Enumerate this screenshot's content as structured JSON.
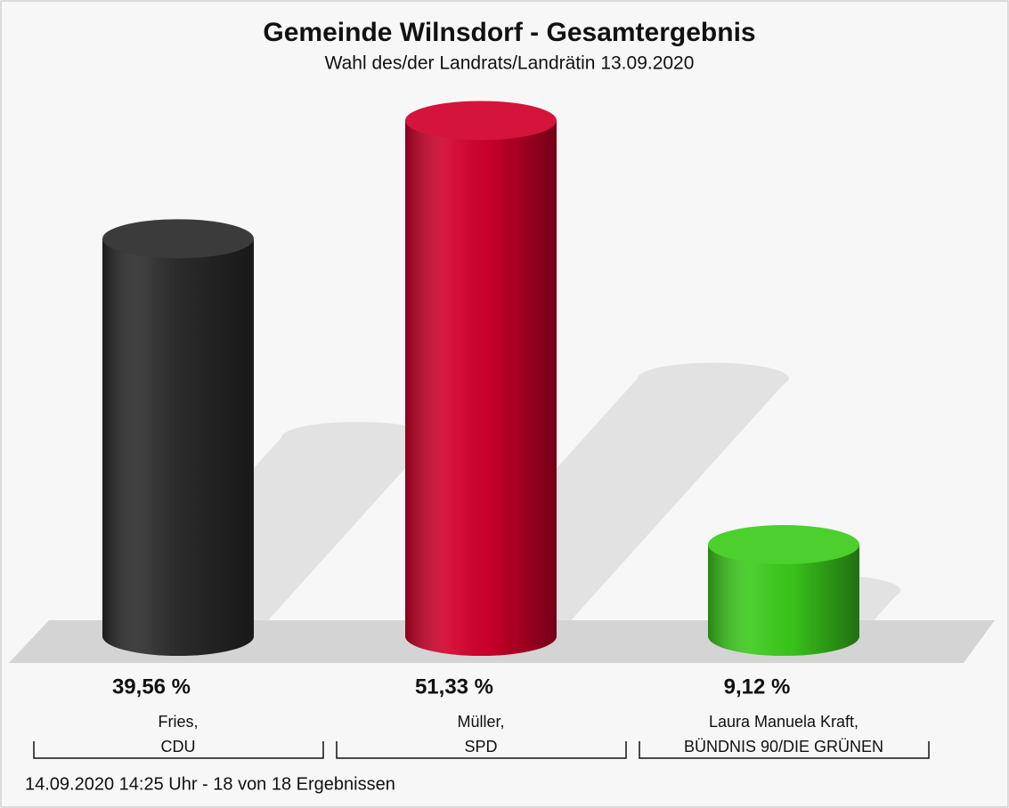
{
  "chart_data": {
    "type": "bar",
    "title": "Gemeinde Wilnsdorf - Gesamtergebnis",
    "subtitle": "Wahl des/der Landrats/Landrätin 13.09.2020",
    "categories": [
      [
        "Fries,",
        "CDU"
      ],
      [
        "Müller,",
        "SPD"
      ],
      [
        "Laura Manuela Kraft,",
        "BÜNDNIS 90/DIE GRÜNEN"
      ]
    ],
    "values": [
      39.56,
      51.33,
      9.12
    ],
    "value_labels": [
      "39,56 %",
      "51,33 %",
      "9,12 %"
    ],
    "colors": [
      "#2b2b2b",
      "#d2002b",
      "#3ccc1c"
    ],
    "ylim": [
      0,
      55
    ],
    "note": "14.09.2020 14:25 Uhr - 18 von 18 Ergebnissen"
  }
}
